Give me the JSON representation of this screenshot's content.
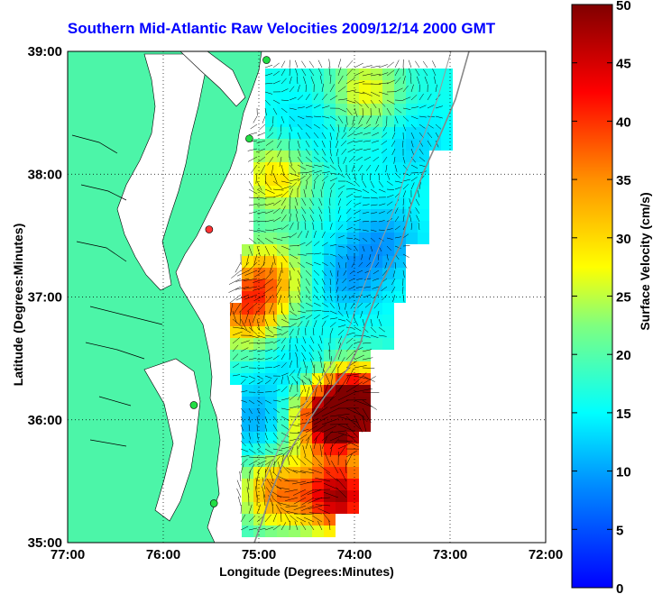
{
  "title": "Southern Mid-Atlantic Raw Velocities 2009/12/14 2000 GMT",
  "map": {
    "xlabel": "Longitude (Degrees:Minutes)",
    "ylabel": "Latitude (Degrees:Minutes)",
    "lon_range": [
      -77,
      -72
    ],
    "lat_range": [
      35,
      39
    ],
    "x_ticks": [
      "77:00",
      "76:00",
      "75:00",
      "74:00",
      "73:00",
      "72:00"
    ],
    "y_ticks": [
      "39:00",
      "38:00",
      "37:00",
      "36:00",
      "35:00"
    ],
    "grid": "dotted",
    "land_color": "#4cf5a8",
    "water_color": "#ffffff",
    "stations": [
      {
        "lon": -74.92,
        "lat": 38.93,
        "color": "#22dd44"
      },
      {
        "lon": -75.1,
        "lat": 38.29,
        "color": "#22dd44"
      },
      {
        "lon": -75.52,
        "lat": 37.55,
        "color": "#ff3333"
      },
      {
        "lon": -75.68,
        "lat": 36.12,
        "color": "#22dd44"
      },
      {
        "lon": -75.47,
        "lat": 35.32,
        "color": "#22dd44"
      }
    ]
  },
  "colorbar": {
    "label": "Surface Velocity (cm/s)",
    "range": [
      0,
      50
    ],
    "ticks": [
      "50",
      "45",
      "40",
      "35",
      "30",
      "25",
      "20",
      "15",
      "10",
      "5",
      "0"
    ],
    "colormap": "jet"
  }
}
